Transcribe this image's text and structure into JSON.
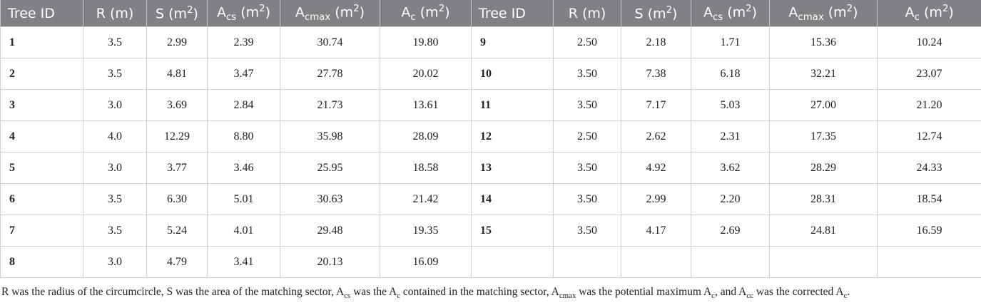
{
  "table": {
    "header": [
      [
        {
          "kind": "text",
          "s": "Tree ID"
        }
      ],
      [
        {
          "kind": "text",
          "s": "R (m)"
        }
      ],
      [
        {
          "kind": "text",
          "s": "S (m"
        },
        {
          "kind": "sup",
          "s": "2"
        },
        {
          "kind": "text",
          "s": ")"
        }
      ],
      [
        {
          "kind": "text",
          "s": "A"
        },
        {
          "kind": "sub",
          "s": "cs"
        },
        {
          "kind": "text",
          "s": " (m"
        },
        {
          "kind": "sup",
          "s": "2"
        },
        {
          "kind": "text",
          "s": ")"
        }
      ],
      [
        {
          "kind": "text",
          "s": "A"
        },
        {
          "kind": "sub",
          "s": "cmax"
        },
        {
          "kind": "text",
          "s": " (m"
        },
        {
          "kind": "sup",
          "s": "2"
        },
        {
          "kind": "text",
          "s": ")"
        }
      ],
      [
        {
          "kind": "text",
          "s": "A"
        },
        {
          "kind": "sub",
          "s": "c"
        },
        {
          "kind": "text",
          "s": " (m"
        },
        {
          "kind": "sup",
          "s": "2"
        },
        {
          "kind": "text",
          "s": ")"
        }
      ],
      [
        {
          "kind": "text",
          "s": "Tree ID"
        }
      ],
      [
        {
          "kind": "text",
          "s": "R (m)"
        }
      ],
      [
        {
          "kind": "text",
          "s": "S (m"
        },
        {
          "kind": "sup",
          "s": "2"
        },
        {
          "kind": "text",
          "s": ")"
        }
      ],
      [
        {
          "kind": "text",
          "s": "A"
        },
        {
          "kind": "sub",
          "s": "cs"
        },
        {
          "kind": "text",
          "s": " (m"
        },
        {
          "kind": "sup",
          "s": "2"
        },
        {
          "kind": "text",
          "s": ")"
        }
      ],
      [
        {
          "kind": "text",
          "s": "A"
        },
        {
          "kind": "sub",
          "s": "cmax"
        },
        {
          "kind": "text",
          "s": " (m"
        },
        {
          "kind": "sup",
          "s": "2"
        },
        {
          "kind": "text",
          "s": ")"
        }
      ],
      [
        {
          "kind": "text",
          "s": "A"
        },
        {
          "kind": "sub",
          "s": "c"
        },
        {
          "kind": "text",
          "s": " (m"
        },
        {
          "kind": "sup",
          "s": "2"
        },
        {
          "kind": "text",
          "s": ")"
        }
      ]
    ],
    "left_rows": [
      [
        "1",
        "3.5",
        "2.99",
        "2.39",
        "30.74",
        "19.80"
      ],
      [
        "2",
        "3.5",
        "4.81",
        "3.47",
        "27.78",
        "20.02"
      ],
      [
        "3",
        "3.0",
        "3.69",
        "2.84",
        "21.73",
        "13.61"
      ],
      [
        "4",
        "4.0",
        "12.29",
        "8.80",
        "35.98",
        "28.09"
      ],
      [
        "5",
        "3.0",
        "3.77",
        "3.46",
        "25.95",
        "18.58"
      ],
      [
        "6",
        "3.5",
        "6.30",
        "5.01",
        "30.63",
        "21.42"
      ],
      [
        "7",
        "3.5",
        "5.24",
        "4.01",
        "29.48",
        "19.35"
      ],
      [
        "8",
        "3.0",
        "4.79",
        "3.41",
        "20.13",
        "16.09"
      ]
    ],
    "right_rows": [
      [
        "9",
        "2.50",
        "2.18",
        "1.71",
        "15.36",
        "10.24"
      ],
      [
        "10",
        "3.50",
        "7.38",
        "6.18",
        "32.21",
        "23.07"
      ],
      [
        "11",
        "3.50",
        "7.17",
        "5.03",
        "27.00",
        "21.20"
      ],
      [
        "12",
        "2.50",
        "2.62",
        "2.31",
        "17.35",
        "12.74"
      ],
      [
        "13",
        "3.50",
        "4.92",
        "3.62",
        "28.29",
        "24.33"
      ],
      [
        "14",
        "3.50",
        "2.99",
        "2.20",
        "28.31",
        "18.54"
      ],
      [
        "15",
        "3.50",
        "4.17",
        "2.69",
        "24.81",
        "16.59"
      ]
    ],
    "footnote": [
      {
        "kind": "text",
        "s": "R was the radius of the circumcircle, S was the area of the matching sector, A"
      },
      {
        "kind": "sub",
        "s": "cs"
      },
      {
        "kind": "text",
        "s": " was the A"
      },
      {
        "kind": "sub",
        "s": "c"
      },
      {
        "kind": "text",
        "s": " contained in the matching sector, A"
      },
      {
        "kind": "sub",
        "s": "cmax"
      },
      {
        "kind": "text",
        "s": " was the potential maximum A"
      },
      {
        "kind": "sub",
        "s": "c"
      },
      {
        "kind": "text",
        "s": ", and A"
      },
      {
        "kind": "sub",
        "s": "cc"
      },
      {
        "kind": "text",
        "s": " was the corrected A"
      },
      {
        "kind": "sub",
        "s": "c"
      },
      {
        "kind": "text",
        "s": "."
      }
    ]
  }
}
